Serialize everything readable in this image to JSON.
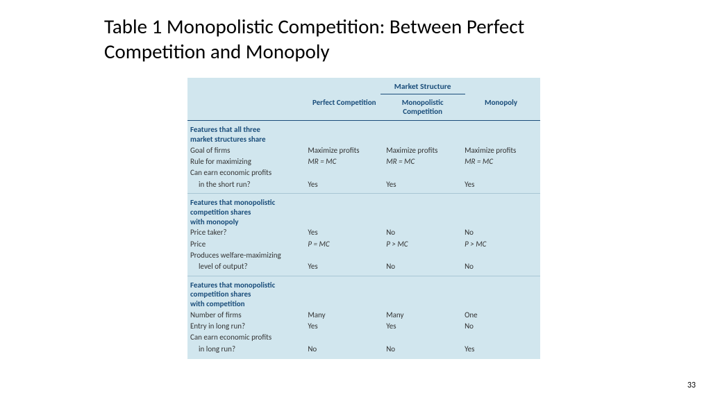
{
  "title": "Table 1  Monopolistic Competition: Between Perfect Competition and Monopoly",
  "pageNumber": "33",
  "table": {
    "spanner": "Market Structure",
    "columns": [
      "Perfect\nCompetition",
      "Monopolistic\nCompetition",
      "Monopoly"
    ],
    "sections": [
      {
        "header": "Features that all three\nmarket structures share",
        "rows": [
          {
            "label": "Goal of firms",
            "cells": [
              "Maximize profits",
              "Maximize profits",
              "Maximize profits"
            ]
          },
          {
            "label": "Rule for maximizing",
            "cells": [
              "MR = MC",
              "MR = MC",
              "MR = MC"
            ],
            "italic": true
          },
          {
            "label": "Can earn economic profits",
            "cells": [
              "",
              "",
              ""
            ]
          },
          {
            "label": "in the short run?",
            "indent": true,
            "cells": [
              "Yes",
              "Yes",
              "Yes"
            ]
          }
        ]
      },
      {
        "header": "Features that monopolistic\ncompetition shares\nwith monopoly",
        "rows": [
          {
            "label": "Price taker?",
            "cells": [
              "Yes",
              "No",
              "No"
            ]
          },
          {
            "label": "Price",
            "cells": [
              "P = MC",
              "P > MC",
              "P > MC"
            ],
            "italic": true
          },
          {
            "label": "Produces welfare-maximizing",
            "cells": [
              "",
              "",
              ""
            ]
          },
          {
            "label": "level of output?",
            "indent": true,
            "cells": [
              "Yes",
              "No",
              "No"
            ]
          }
        ]
      },
      {
        "header": "Features that monopolistic\ncompetition shares\nwith competition",
        "rows": [
          {
            "label": "Number of firms",
            "cells": [
              "Many",
              "Many",
              "One"
            ]
          },
          {
            "label": "Entry in long run?",
            "cells": [
              "Yes",
              "Yes",
              "No"
            ]
          },
          {
            "label": "Can earn economic profits",
            "cells": [
              "",
              "",
              ""
            ]
          },
          {
            "label": "in long run?",
            "indent": true,
            "cells": [
              "No",
              "No",
              "Yes"
            ]
          }
        ]
      }
    ]
  },
  "styling": {
    "background": "#ffffff",
    "table_bg": "#d1e6ee",
    "header_color": "#1a4d7a",
    "text_color": "#333333",
    "rule_color": "#1a4d7a",
    "section_rule_color": "#a8c6d4",
    "title_fontsize": 29,
    "body_fontsize": 11
  }
}
